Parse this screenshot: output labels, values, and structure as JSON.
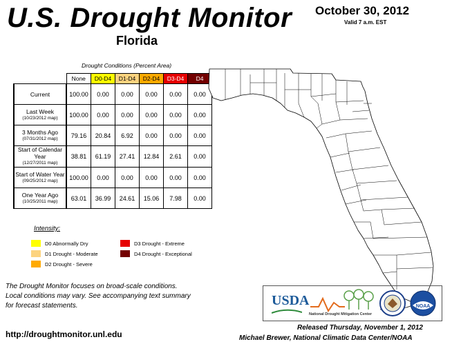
{
  "header": {
    "title": "U.S. Drought Monitor",
    "state": "Florida",
    "date": "October 30, 2012",
    "valid": "Valid 7 a.m. EST"
  },
  "table": {
    "title": "Drought Conditions (Percent Area)",
    "columns": [
      "None",
      "D0-D4",
      "D1-D4",
      "D2-D4",
      "D3-D4",
      "D4"
    ],
    "column_colors": [
      "#ffffff",
      "#ffff00",
      "#fcd37f",
      "#ffaa00",
      "#e60000",
      "#730000"
    ],
    "rows": [
      {
        "label": "Current",
        "sub": "",
        "values": [
          "100.00",
          "0.00",
          "0.00",
          "0.00",
          "0.00",
          "0.00"
        ]
      },
      {
        "label": "Last Week",
        "sub": "(10/23/2012 map)",
        "values": [
          "100.00",
          "0.00",
          "0.00",
          "0.00",
          "0.00",
          "0.00"
        ]
      },
      {
        "label": "3 Months Ago",
        "sub": "(07/31/2012 map)",
        "values": [
          "79.16",
          "20.84",
          "6.92",
          "0.00",
          "0.00",
          "0.00"
        ]
      },
      {
        "label": "Start of Calendar Year",
        "sub": "(12/27/2011 map)",
        "values": [
          "38.81",
          "61.19",
          "27.41",
          "12.84",
          "2.61",
          "0.00"
        ]
      },
      {
        "label": "Start of Water Year",
        "sub": "(09/25/2012 map)",
        "values": [
          "100.00",
          "0.00",
          "0.00",
          "0.00",
          "0.00",
          "0.00"
        ]
      },
      {
        "label": "One Year Ago",
        "sub": "(10/25/2011 map)",
        "values": [
          "63.01",
          "36.99",
          "24.61",
          "15.06",
          "7.98",
          "0.00"
        ]
      }
    ]
  },
  "legend": {
    "title": "Intensity:",
    "items": [
      {
        "label": "D0 Abnormally Dry",
        "color": "#ffff00"
      },
      {
        "label": "D1 Drought - Moderate",
        "color": "#fcd37f"
      },
      {
        "label": "D2 Drought - Severe",
        "color": "#ffaa00"
      },
      {
        "label": "D3 Drought - Extreme",
        "color": "#e60000"
      },
      {
        "label": "D4 Drought - Exceptional",
        "color": "#730000"
      }
    ]
  },
  "footer": {
    "note_lines": [
      "The Drought Monitor focuses on broad-scale conditions.",
      "Local conditions may vary. See accompanying text summary",
      "for forecast statements."
    ],
    "url": "http://droughtmonitor.unl.edu",
    "released": "Released Thursday, November 1, 2012",
    "author": "Michael Brewer, National Climatic Data Center/NOAA"
  },
  "logos": {
    "usda": "USDA",
    "ndmc": "National Drought Mitigation Center",
    "doc_icon": "department-of-commerce-seal",
    "noaa": "NOAA"
  }
}
